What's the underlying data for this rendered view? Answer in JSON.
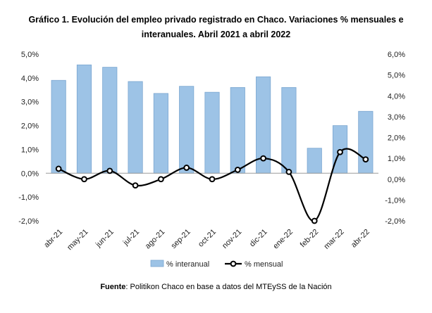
{
  "chart_data": {
    "type": "bar+line",
    "title_line1": "Gráfico 1. Evolución del empleo privado registrado en Chaco. Variaciones % mensuales e",
    "title_line2": "interanuales. Abril 2021 a abril 2022",
    "categories": [
      "abr-21",
      "may-21",
      "jun-21",
      "jul-21",
      "ago-21",
      "sep-21",
      "oct-21",
      "nov-21",
      "dic-21",
      "ene-22",
      "feb-22",
      "mar-22",
      "abr-22"
    ],
    "series": [
      {
        "name": "% interanual",
        "type": "bar",
        "axis": "left",
        "color": "#9dc3e6",
        "values": [
          3.9,
          4.55,
          4.45,
          3.85,
          3.35,
          3.65,
          3.4,
          3.6,
          4.05,
          3.6,
          1.05,
          2.0,
          2.6
        ]
      },
      {
        "name": "% mensual",
        "type": "line",
        "axis": "right",
        "color": "#000000",
        "values": [
          0.5,
          0.0,
          0.4,
          -0.3,
          0.0,
          0.55,
          0.0,
          0.45,
          1.0,
          0.35,
          -2.0,
          1.3,
          0.95
        ]
      }
    ],
    "y_left": {
      "min": -2.0,
      "max": 5.0,
      "step": 1.0,
      "ticks": [
        "-2,0%",
        "-1,0%",
        "0,0%",
        "1,0%",
        "2,0%",
        "3,0%",
        "4,0%",
        "5,0%"
      ]
    },
    "y_right": {
      "min": -2.0,
      "max": 6.0,
      "step": 1.0,
      "ticks": [
        "-2,0%",
        "-1,0%",
        "0,0%",
        "1,0%",
        "2,0%",
        "3,0%",
        "4,0%",
        "5,0%",
        "6,0%"
      ]
    },
    "grid": false,
    "legend_position": "bottom"
  },
  "source": {
    "label": "Fuente",
    "text": ": Politikon Chaco en base a datos del MTEySS de la Nación"
  }
}
